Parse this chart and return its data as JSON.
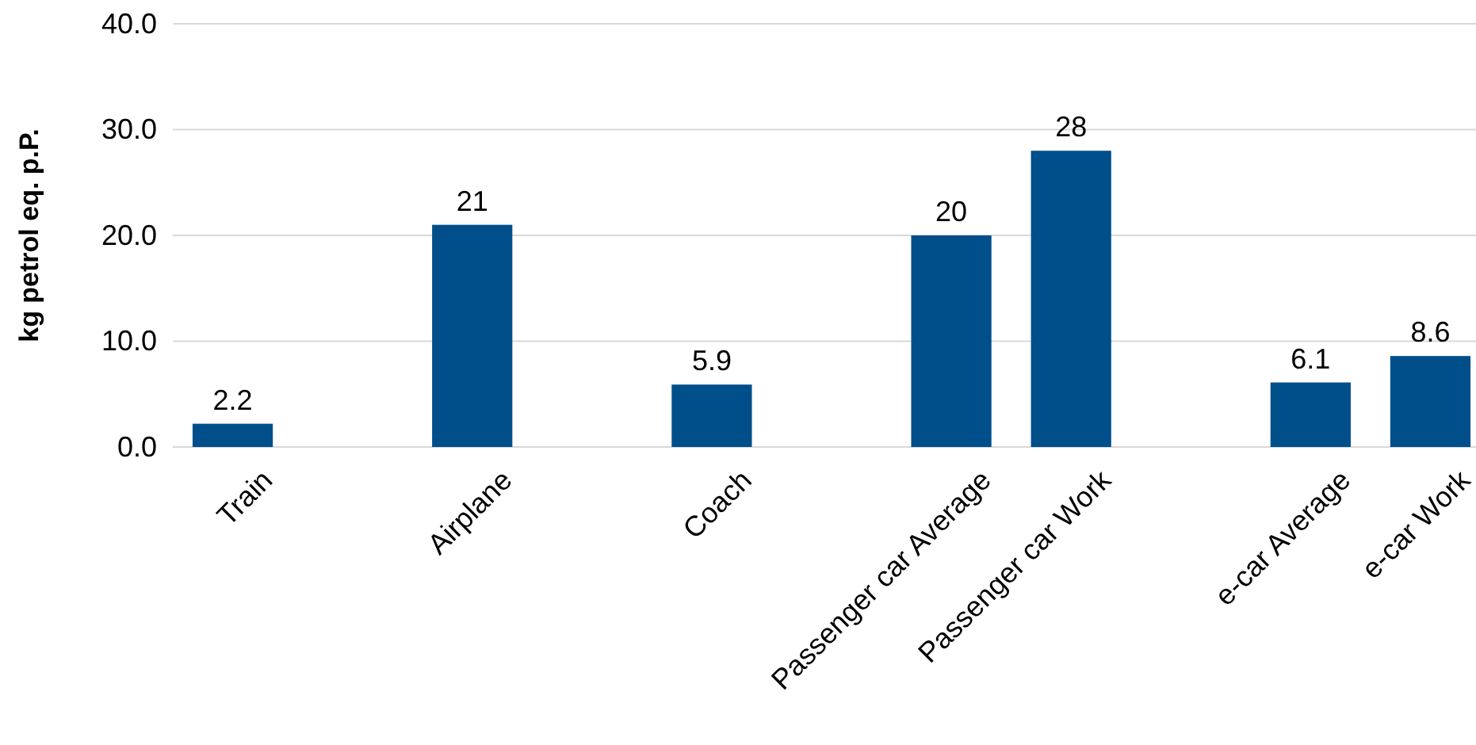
{
  "chart_data": {
    "type": "bar",
    "ylabel": "kg petrol eq. p.P.",
    "categories": [
      "Train",
      null,
      "Airplane",
      null,
      "Coach",
      null,
      "Passenger car Average",
      "Passenger car Work",
      null,
      "e-car Average",
      "e-car Work"
    ],
    "values": [
      2.2,
      null,
      21,
      null,
      5.9,
      null,
      20,
      28,
      null,
      6.1,
      8.6
    ],
    "color": "#004f8a",
    "ylim": [
      0,
      40
    ],
    "yticks": [
      {
        "value": 0,
        "label": "0.0"
      },
      {
        "value": 10,
        "label": "10.0"
      },
      {
        "value": 20,
        "label": "20.0"
      },
      {
        "value": 30,
        "label": "30.0"
      },
      {
        "value": 40,
        "label": "40.0"
      }
    ],
    "grid": "y",
    "data_labels": true
  }
}
